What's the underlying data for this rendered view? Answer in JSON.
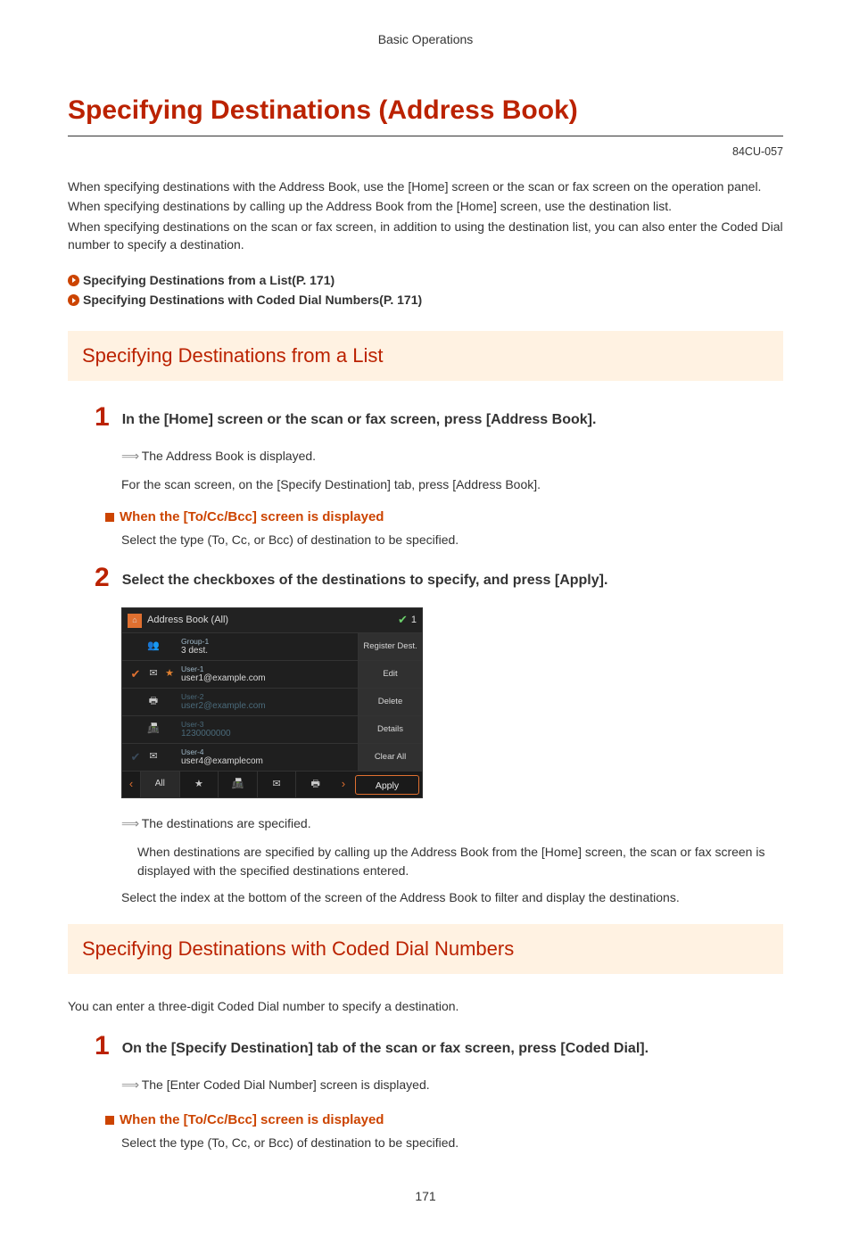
{
  "header": {
    "breadcrumb": "Basic Operations"
  },
  "title": "Specifying Destinations (Address Book)",
  "doc_id": "84CU-057",
  "intro": {
    "p1": "When specifying destinations with the Address Book, use the [Home] screen or the scan or fax screen on the operation panel.",
    "p2": "When specifying destinations by calling up the Address Book from the [Home] screen, use the destination list.",
    "p3": "When specifying destinations on the scan or fax screen, in addition to using the destination list, you can also enter the Coded Dial number to specify a destination."
  },
  "toc": {
    "link1": "Specifying Destinations from a List(P. 171)",
    "link2": "Specifying Destinations with Coded Dial Numbers(P. 171)"
  },
  "section1": {
    "heading": "Specifying Destinations from a List",
    "step1": {
      "num": "1",
      "title": "In the [Home] screen or the scan or fax screen, press [Address Book].",
      "r1": "The Address Book is displayed.",
      "r2": "For the scan screen, on the [Specify Destination] tab, press [Address Book]."
    },
    "sub1": {
      "heading": "When the [To/Cc/Bcc] screen is displayed",
      "body": "Select the type (To, Cc, or Bcc) of destination to be specified."
    },
    "step2": {
      "num": "2",
      "title": "Select the checkboxes of the destinations to specify, and press [Apply]."
    },
    "screen": {
      "header_title": "Address Book (All)",
      "count": "1",
      "rows": [
        {
          "checked": false,
          "icon1": "👥",
          "icon1_color": "orange",
          "icon2": "",
          "label": "Group-1",
          "sub": "3 dest."
        },
        {
          "checked": true,
          "icon1": "✉",
          "icon2": "★",
          "icon2_color": "orange",
          "label": "User-1",
          "sub": "user1@example.com"
        },
        {
          "checked": false,
          "dim": true,
          "icon1": "🖶",
          "label": "User-2",
          "sub": "user2@example.com"
        },
        {
          "checked": false,
          "dim": true,
          "icon1": "📠",
          "label": "User-3",
          "sub": "1230000000"
        },
        {
          "checked": false,
          "checkdim": true,
          "icon1": "✉",
          "label": "User-4",
          "sub": "user4@examplecom"
        }
      ],
      "side_buttons": [
        "Register Dest.",
        "Edit",
        "Delete",
        "Details",
        "Clear All"
      ],
      "bottom": {
        "all": "All",
        "icons": [
          "★",
          "📠",
          "✉",
          "🖶"
        ],
        "apply": "Apply"
      }
    },
    "result": {
      "r1": "The destinations are specified.",
      "r2": "When destinations are specified by calling up the Address Book from the [Home] screen, the scan or fax screen is displayed with the specified destinations entered.",
      "r3": "Select the index at the bottom of the screen of the Address Book to filter and display the destinations."
    }
  },
  "section2": {
    "heading": "Specifying Destinations with Coded Dial Numbers",
    "intro": "You can enter a three-digit Coded Dial number to specify a destination.",
    "step1": {
      "num": "1",
      "title": "On the [Specify Destination] tab of the scan or fax screen, press [Coded Dial].",
      "r1": "The [Enter Coded Dial Number] screen is displayed."
    },
    "sub1": {
      "heading": "When the [To/Cc/Bcc] screen is displayed",
      "body": "Select the type (To, Cc, or Bcc) of destination to be specified."
    }
  },
  "page_number": "171",
  "colors": {
    "accent": "#bb2200",
    "orange": "#cc4400",
    "panel_bg": "#fff2e2"
  }
}
